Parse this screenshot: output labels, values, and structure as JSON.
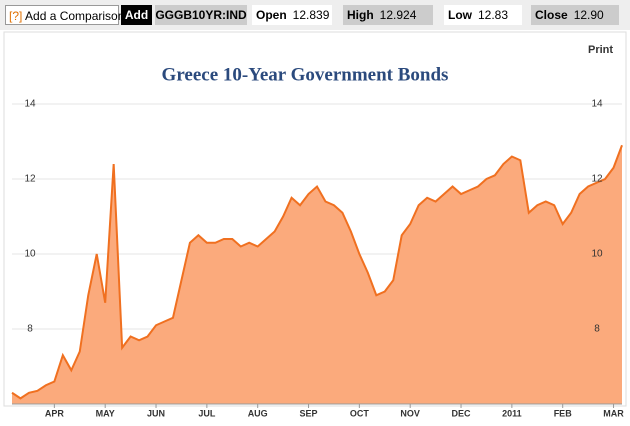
{
  "header": {
    "help": "[?]",
    "comparison_input": "Add a Comparison",
    "add_button": "Add",
    "ticker": "GGGB10YR:IND",
    "stats": [
      {
        "label": "Open",
        "value": "12.839"
      },
      {
        "label": "High",
        "value": "12.924"
      },
      {
        "label": "Low",
        "value": "12.83"
      },
      {
        "label": "Close",
        "value": "12.90"
      }
    ],
    "print": "Print"
  },
  "chart_data": {
    "type": "area",
    "title": "Greece 10-Year Government Bonds",
    "categories": [
      null,
      null,
      null,
      null,
      null,
      "APR",
      null,
      null,
      null,
      null,
      null,
      "MAY",
      null,
      null,
      null,
      null,
      null,
      "JUN",
      null,
      null,
      null,
      null,
      null,
      "JUL",
      null,
      null,
      null,
      null,
      null,
      "AUG",
      null,
      null,
      null,
      null,
      null,
      "SEP",
      null,
      null,
      null,
      null,
      null,
      "OCT",
      null,
      null,
      null,
      null,
      null,
      "NOV",
      null,
      null,
      null,
      null,
      null,
      "DEC",
      null,
      null,
      null,
      null,
      null,
      "2011",
      null,
      null,
      null,
      null,
      null,
      "FEB",
      null,
      null,
      null,
      null,
      null,
      "MAR",
      null
    ],
    "values": [
      6.3,
      6.15,
      6.3,
      6.35,
      6.5,
      6.6,
      7.3,
      6.9,
      7.4,
      8.9,
      10.0,
      8.7,
      12.4,
      7.5,
      7.8,
      7.7,
      7.8,
      8.1,
      8.2,
      8.3,
      9.3,
      10.3,
      10.5,
      10.3,
      10.3,
      10.4,
      10.4,
      10.2,
      10.3,
      10.2,
      10.4,
      10.6,
      11.0,
      11.5,
      11.3,
      11.6,
      11.8,
      11.4,
      11.3,
      11.1,
      10.6,
      10.0,
      9.5,
      8.9,
      9.0,
      9.3,
      10.5,
      10.8,
      11.3,
      11.5,
      11.4,
      11.6,
      11.8,
      11.6,
      11.7,
      11.8,
      12.0,
      12.1,
      12.4,
      12.6,
      12.5,
      11.1,
      11.3,
      11.4,
      11.3,
      10.8,
      11.1,
      11.6,
      11.8,
      11.9,
      12.0,
      12.3,
      12.9
    ],
    "color": "#f07020",
    "fill_color": "#fbaa7c",
    "ylim": [
      6,
      15.75
    ],
    "yticks": [
      8,
      10,
      12,
      14
    ],
    "grid": true
  }
}
